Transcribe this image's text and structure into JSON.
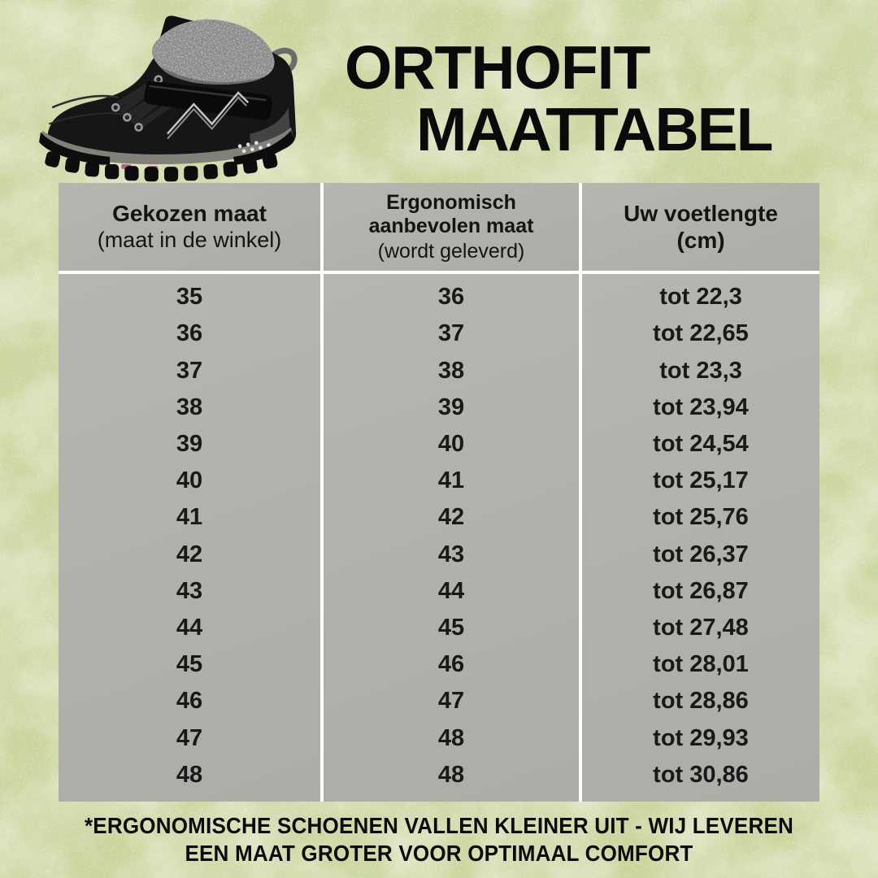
{
  "header": {
    "title_line1": "ORTHOFIT",
    "title_line2": "MAATTABEL"
  },
  "chart_data": {
    "type": "table",
    "title": "ORTHOFIT MAATTABEL",
    "columns": [
      {
        "title": "Gekozen maat",
        "subtitle": "(maat in de winkel)",
        "values": [
          "35",
          "36",
          "37",
          "38",
          "39",
          "40",
          "41",
          "42",
          "43",
          "44",
          "45",
          "46",
          "47",
          "48"
        ]
      },
      {
        "title": "Ergonomisch aanbevolen maat",
        "subtitle": "(wordt geleverd)",
        "values": [
          "36",
          "37",
          "38",
          "39",
          "40",
          "41",
          "42",
          "43",
          "44",
          "45",
          "46",
          "47",
          "48",
          "48"
        ]
      },
      {
        "title": "Uw voetlengte",
        "subtitle": "(cm)",
        "values": [
          "tot 22,3",
          "tot 22,65",
          "tot 23,3",
          "tot 23,94",
          "tot 24,54",
          "tot 25,17",
          "tot 25,76",
          "tot 26,37",
          "tot 26,87",
          "tot 27,48",
          "tot 28,01",
          "tot 28,86",
          "tot 29,93",
          "tot 30,86"
        ]
      }
    ]
  },
  "footnote": {
    "line1": "*ERGONOMISCHE SCHOENEN VALLEN KLEINER UIT - WIJ LEVEREN",
    "line2": "EEN MAAT GROTER VOOR OPTIMAAL COMFORT"
  },
  "colors": {
    "background_green": "#cbd69f",
    "table_gray": "#b2b1ab",
    "divider_white": "#ffffff",
    "text_black": "#0e0e0e",
    "shoe_pink_accent": "#b85f83"
  }
}
